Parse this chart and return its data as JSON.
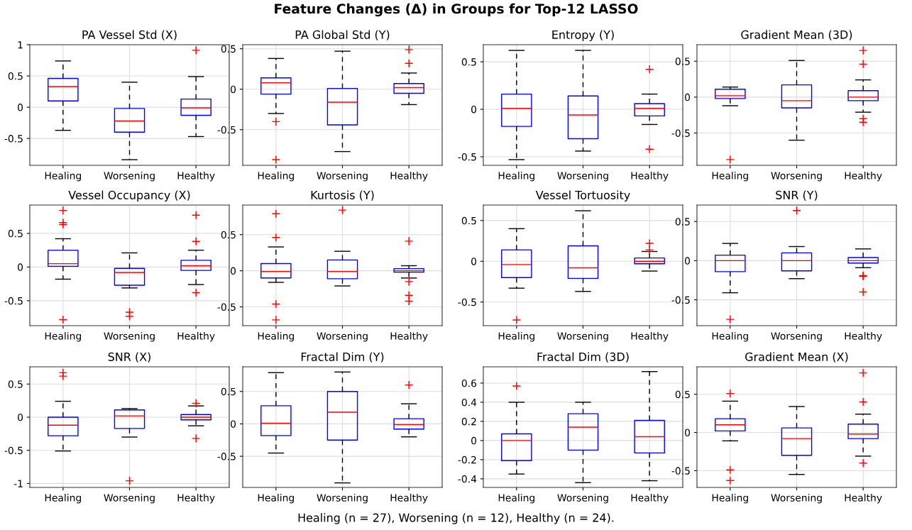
{
  "chart_data": [
    {
      "type": "other",
      "title": "Feature Changes (Δ) in Groups for Top-12 LASSO",
      "annotations": [
        "Healing (n = 27), Worsening (n = 12), Healthy (n = 24)."
      ]
    },
    {
      "type": "box",
      "title": "PA Vessel Std (X)",
      "categories": [
        "Healing",
        "Worsening",
        "Healthy"
      ],
      "ylim": [
        -0.93,
        1
      ],
      "yticks": [
        -0.5,
        0,
        0.5,
        1
      ],
      "grid": true,
      "boxes": [
        {
          "low": -0.37,
          "q1": 0.1,
          "median": 0.33,
          "q3": 0.46,
          "high": 0.74
        },
        {
          "low": -0.84,
          "q1": -0.4,
          "median": -0.22,
          "q3": -0.02,
          "high": 0.4
        },
        {
          "low": -0.47,
          "q1": -0.13,
          "median": -0.01,
          "q3": 0.13,
          "high": 0.49,
          "outliers": [
            0.91
          ]
        }
      ]
    },
    {
      "type": "box",
      "title": "PA Global Std (Y)",
      "categories": [
        "Healing",
        "Worsening",
        "Healthy"
      ],
      "ylim": [
        -0.94,
        0.55
      ],
      "yticks": [
        -0.5,
        0,
        0.5
      ],
      "grid": true,
      "boxes": [
        {
          "low": -0.3,
          "q1": -0.06,
          "median": 0.08,
          "q3": 0.14,
          "high": 0.38,
          "outliers": [
            -0.4,
            -0.87
          ]
        },
        {
          "low": -0.77,
          "q1": -0.44,
          "median": -0.16,
          "q3": 0.01,
          "high": 0.47
        },
        {
          "low": -0.19,
          "q1": -0.05,
          "median": 0.02,
          "q3": 0.07,
          "high": 0.2,
          "outliers": [
            0.49,
            0.32
          ]
        }
      ]
    },
    {
      "type": "box",
      "title": "Entropy (Y)",
      "categories": [
        "Healing",
        "Worsening",
        "Healthy"
      ],
      "ylim": [
        -0.59,
        0.68
      ],
      "yticks": [
        -0.5,
        0,
        0.5
      ],
      "grid": true,
      "boxes": [
        {
          "low": -0.53,
          "q1": -0.18,
          "median": 0.01,
          "q3": 0.16,
          "high": 0.62
        },
        {
          "low": -0.44,
          "q1": -0.31,
          "median": -0.06,
          "q3": 0.14,
          "high": 0.62
        },
        {
          "low": -0.16,
          "q1": -0.07,
          "median": 0.01,
          "q3": 0.06,
          "high": 0.16,
          "outliers": [
            0.42,
            -0.42
          ]
        }
      ]
    },
    {
      "type": "box",
      "title": "Gradient Mean (3D)",
      "categories": [
        "Healing",
        "Worsening",
        "Healthy"
      ],
      "ylim": [
        -0.95,
        0.73
      ],
      "yticks": [
        -0.5,
        0,
        0.5
      ],
      "grid": true,
      "boxes": [
        {
          "low": -0.12,
          "q1": -0.02,
          "median": 0.02,
          "q3": 0.11,
          "high": 0.14,
          "outliers": [
            -0.87
          ]
        },
        {
          "low": -0.6,
          "q1": -0.15,
          "median": -0.05,
          "q3": 0.17,
          "high": 0.51
        },
        {
          "low": -0.21,
          "q1": -0.05,
          "median": 0.0,
          "q3": 0.09,
          "high": 0.24,
          "outliers": [
            0.65,
            0.46,
            -0.3,
            -0.35
          ]
        }
      ]
    },
    {
      "type": "box",
      "title": "Vessel Occupancy (X)",
      "categories": [
        "Healing",
        "Worsening",
        "Healthy"
      ],
      "ylim": [
        -0.87,
        0.92
      ],
      "yticks": [
        -0.5,
        0,
        0.5
      ],
      "grid": true,
      "boxes": [
        {
          "low": -0.18,
          "q1": 0.01,
          "median": 0.05,
          "q3": 0.25,
          "high": 0.42,
          "outliers": [
            0.84,
            0.66,
            0.63,
            -0.78
          ]
        },
        {
          "low": -0.31,
          "q1": -0.27,
          "median": -0.08,
          "q3": -0.02,
          "high": 0.21,
          "outliers": [
            -0.67,
            -0.73
          ]
        },
        {
          "low": -0.26,
          "q1": -0.05,
          "median": 0.02,
          "q3": 0.1,
          "high": 0.25,
          "outliers": [
            0.77,
            0.38,
            -0.38
          ]
        }
      ]
    },
    {
      "type": "box",
      "title": "Kurtosis (Y)",
      "categories": [
        "Healing",
        "Worsening",
        "Healthy"
      ],
      "ylim": [
        -0.76,
        0.91
      ],
      "yticks": [
        -0.5,
        0,
        0.5
      ],
      "grid": true,
      "boxes": [
        {
          "low": -0.16,
          "q1": -0.1,
          "median": -0.01,
          "q3": 0.1,
          "high": 0.33,
          "outliers": [
            0.79,
            0.46,
            -0.46,
            -0.68
          ]
        },
        {
          "low": -0.21,
          "q1": -0.11,
          "median": -0.01,
          "q3": 0.15,
          "high": 0.27,
          "outliers": [
            0.84
          ]
        },
        {
          "low": -0.1,
          "q1": -0.02,
          "median": 0.0,
          "q3": 0.03,
          "high": 0.07,
          "outliers": [
            0.41,
            -0.15,
            -0.34,
            -0.42
          ]
        }
      ]
    },
    {
      "type": "box",
      "title": "Vessel Tortuosity",
      "categories": [
        "Healing",
        "Worsening",
        "Healthy"
      ],
      "ylim": [
        -0.79,
        0.69
      ],
      "yticks": [
        -0.5,
        0,
        0.5
      ],
      "grid": true,
      "boxes": [
        {
          "low": -0.33,
          "q1": -0.2,
          "median": -0.04,
          "q3": 0.14,
          "high": 0.4,
          "outliers": [
            -0.72
          ]
        },
        {
          "low": -0.37,
          "q1": -0.21,
          "median": -0.08,
          "q3": 0.19,
          "high": 0.62
        },
        {
          "low": -0.12,
          "q1": -0.03,
          "median": 0.0,
          "q3": 0.04,
          "high": 0.12,
          "outliers": [
            0.22,
            0.14
          ]
        }
      ]
    },
    {
      "type": "box",
      "title": "SNR (Y)",
      "categories": [
        "Healing",
        "Worsening",
        "Healthy"
      ],
      "ylim": [
        -0.83,
        0.71
      ],
      "yticks": [
        -0.5,
        0,
        0.5
      ],
      "grid": true,
      "boxes": [
        {
          "low": -0.41,
          "q1": -0.14,
          "median": 0.0,
          "q3": 0.07,
          "high": 0.22,
          "outliers": [
            -0.75
          ]
        },
        {
          "low": -0.23,
          "q1": -0.13,
          "median": 0.0,
          "q3": 0.1,
          "high": 0.18,
          "outliers": [
            0.64
          ]
        },
        {
          "low": -0.09,
          "q1": -0.03,
          "median": 0.0,
          "q3": 0.04,
          "high": 0.15,
          "outliers": [
            -0.19,
            -0.2,
            -0.4
          ]
        }
      ]
    },
    {
      "type": "box",
      "title": "SNR (X)",
      "categories": [
        "Healing",
        "Worsening",
        "Healthy"
      ],
      "ylim": [
        -1.06,
        0.76
      ],
      "yticks": [
        -1,
        -0.5,
        0,
        0.5
      ],
      "grid": true,
      "boxes": [
        {
          "low": -0.51,
          "q1": -0.28,
          "median": -0.12,
          "q3": 0.0,
          "high": 0.24,
          "outliers": [
            0.67,
            0.62
          ]
        },
        {
          "low": -0.3,
          "q1": -0.17,
          "median": 0.02,
          "q3": 0.11,
          "high": 0.13,
          "outliers": [
            -0.96
          ]
        },
        {
          "low": -0.13,
          "q1": -0.04,
          "median": 0.0,
          "q3": 0.04,
          "high": 0.17,
          "outliers": [
            0.21,
            -0.32
          ]
        }
      ]
    },
    {
      "type": "box",
      "title": "Fractal Dim (Y)",
      "categories": [
        "Healing",
        "Worsening",
        "Healthy"
      ],
      "ylim": [
        -0.98,
        0.88
      ],
      "yticks": [
        -0.5,
        0,
        0.5
      ],
      "grid": true,
      "boxes": [
        {
          "low": -0.45,
          "q1": -0.18,
          "median": 0.01,
          "q3": 0.28,
          "high": 0.79
        },
        {
          "low": -0.91,
          "q1": -0.25,
          "median": 0.18,
          "q3": 0.5,
          "high": 0.8
        },
        {
          "low": -0.2,
          "q1": -0.08,
          "median": -0.01,
          "q3": 0.08,
          "high": 0.31,
          "outliers": [
            0.6
          ]
        }
      ]
    },
    {
      "type": "box",
      "title": "Fractal Dim (3D)",
      "categories": [
        "Healing",
        "Worsening",
        "Healthy"
      ],
      "ylim": [
        -0.49,
        0.77
      ],
      "yticks": [
        -0.4,
        -0.2,
        0,
        0.2,
        0.4,
        0.6
      ],
      "grid": true,
      "boxes": [
        {
          "low": -0.35,
          "q1": -0.21,
          "median": 0.0,
          "q3": 0.07,
          "high": 0.4,
          "outliers": [
            0.57
          ]
        },
        {
          "low": -0.44,
          "q1": -0.1,
          "median": 0.14,
          "q3": 0.28,
          "high": 0.4
        },
        {
          "low": -0.42,
          "q1": -0.13,
          "median": 0.04,
          "q3": 0.21,
          "high": 0.72
        }
      ]
    },
    {
      "type": "box",
      "title": "Gradient Mean (X)",
      "categories": [
        "Healing",
        "Worsening",
        "Healthy"
      ],
      "ylim": [
        -0.72,
        0.86
      ],
      "yticks": [
        -0.5,
        0,
        0.5
      ],
      "grid": true,
      "boxes": [
        {
          "low": -0.11,
          "q1": 0.02,
          "median": 0.1,
          "q3": 0.18,
          "high": 0.41,
          "outliers": [
            0.51,
            -0.49,
            -0.63
          ]
        },
        {
          "low": -0.55,
          "q1": -0.3,
          "median": -0.08,
          "q3": 0.06,
          "high": 0.34
        },
        {
          "low": -0.31,
          "q1": -0.08,
          "median": -0.02,
          "q3": 0.11,
          "high": 0.24,
          "outliers": [
            0.78,
            0.4,
            -0.4
          ]
        }
      ]
    }
  ]
}
